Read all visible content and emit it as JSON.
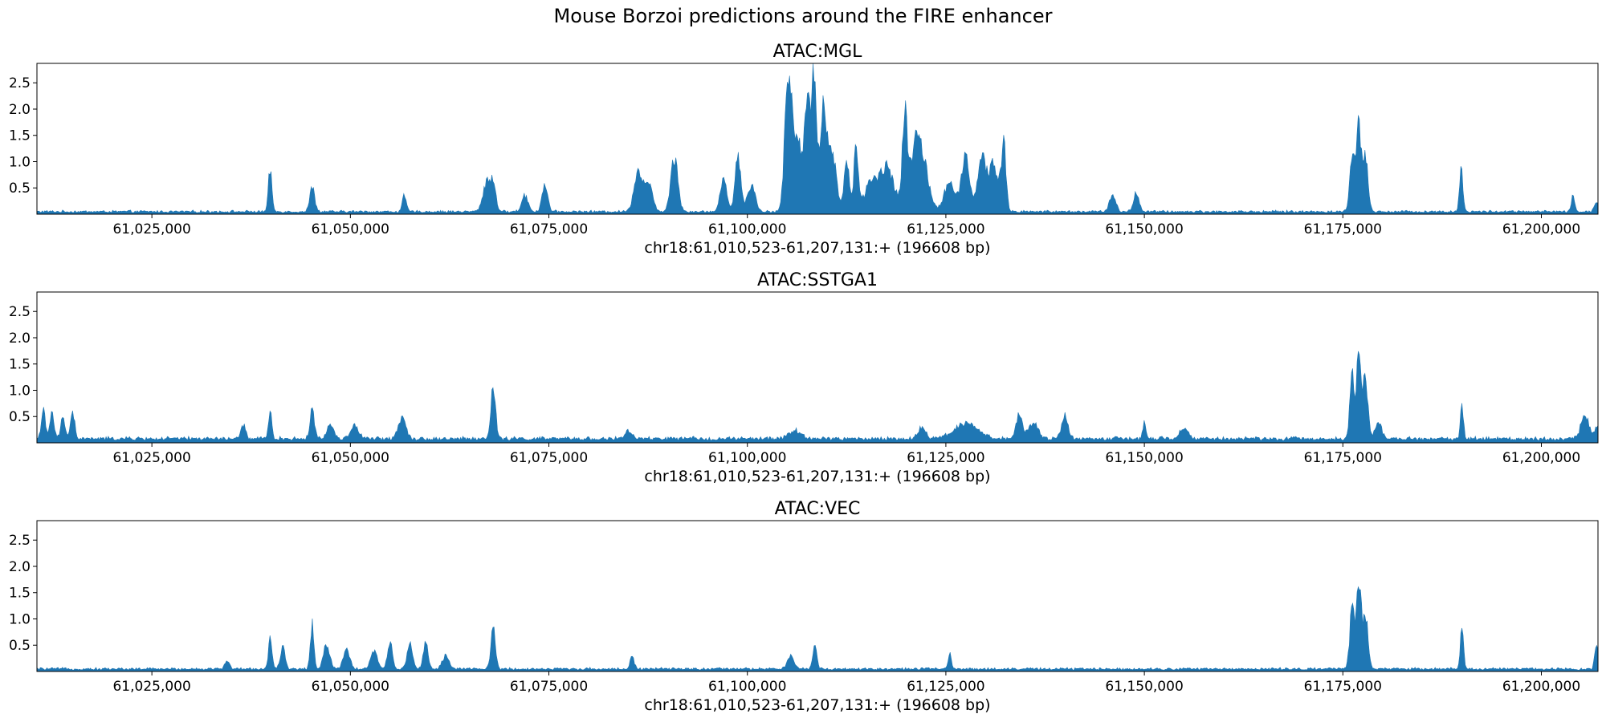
{
  "figure": {
    "title": "Mouse Borzoi predictions around the FIRE enhancer",
    "fill_color": "#1f77b4"
  },
  "chart_data": [
    {
      "type": "area",
      "title": "ATAC:MGL",
      "xlabel": "chr18:61,010,523-61,207,131:+ (196608 bp)",
      "ylabel": "",
      "xlim": [
        61010523,
        61207131
      ],
      "ylim": [
        0,
        2.87
      ],
      "xticks": [
        61025000,
        61050000,
        61075000,
        61100000,
        61125000,
        61150000,
        61175000,
        61200000
      ],
      "xtick_labels": [
        "61,025,000",
        "61,050,000",
        "61,075,000",
        "61,100,000",
        "61,125,000",
        "61,150,000",
        "61,175,000",
        "61,200,000"
      ],
      "yticks": [
        0.5,
        1.0,
        1.5,
        2.0,
        2.5
      ],
      "ytick_labels": [
        "0.5",
        "1.0",
        "1.5",
        "2.0",
        "2.5"
      ],
      "baseline": 0.05,
      "peaks": [
        {
          "pos": 61039900,
          "height": 0.8,
          "width": 220
        },
        {
          "pos": 61045200,
          "height": 0.45,
          "width": 300
        },
        {
          "pos": 61056800,
          "height": 0.3,
          "width": 250
        },
        {
          "pos": 61067200,
          "height": 0.55,
          "width": 500
        },
        {
          "pos": 61068000,
          "height": 0.45,
          "width": 350
        },
        {
          "pos": 61072000,
          "height": 0.3,
          "width": 400
        },
        {
          "pos": 61074500,
          "height": 0.55,
          "width": 350
        },
        {
          "pos": 61086200,
          "height": 0.75,
          "width": 500
        },
        {
          "pos": 61087500,
          "height": 0.6,
          "width": 500
        },
        {
          "pos": 61090800,
          "height": 1.05,
          "width": 450
        },
        {
          "pos": 61097000,
          "height": 0.6,
          "width": 400
        },
        {
          "pos": 61098800,
          "height": 1.15,
          "width": 350
        },
        {
          "pos": 61100500,
          "height": 0.5,
          "width": 500
        },
        {
          "pos": 61105100,
          "height": 2.2,
          "width": 400
        },
        {
          "pos": 61106200,
          "height": 1.4,
          "width": 700
        },
        {
          "pos": 61107600,
          "height": 2.2,
          "width": 350
        },
        {
          "pos": 61108400,
          "height": 2.65,
          "width": 250
        },
        {
          "pos": 61109500,
          "height": 1.9,
          "width": 450
        },
        {
          "pos": 61110700,
          "height": 1.1,
          "width": 500
        },
        {
          "pos": 61112500,
          "height": 0.9,
          "width": 350
        },
        {
          "pos": 61113700,
          "height": 1.2,
          "width": 280
        },
        {
          "pos": 61115500,
          "height": 0.5,
          "width": 800
        },
        {
          "pos": 61117500,
          "height": 0.85,
          "width": 900
        },
        {
          "pos": 61119800,
          "height": 1.5,
          "width": 280
        },
        {
          "pos": 61120900,
          "height": 0.9,
          "width": 900
        },
        {
          "pos": 61122000,
          "height": 0.8,
          "width": 800
        },
        {
          "pos": 61125500,
          "height": 0.55,
          "width": 700
        },
        {
          "pos": 61127500,
          "height": 1.1,
          "width": 500
        },
        {
          "pos": 61129500,
          "height": 1.05,
          "width": 500
        },
        {
          "pos": 61131000,
          "height": 0.9,
          "width": 600
        },
        {
          "pos": 61132300,
          "height": 1.2,
          "width": 300
        },
        {
          "pos": 61146000,
          "height": 0.3,
          "width": 400
        },
        {
          "pos": 61149000,
          "height": 0.35,
          "width": 350
        },
        {
          "pos": 61176200,
          "height": 1.2,
          "width": 300
        },
        {
          "pos": 61177000,
          "height": 1.7,
          "width": 250
        },
        {
          "pos": 61177800,
          "height": 1.1,
          "width": 350
        },
        {
          "pos": 61189900,
          "height": 0.8,
          "width": 220
        },
        {
          "pos": 61204000,
          "height": 0.35,
          "width": 180
        },
        {
          "pos": 61207000,
          "height": 0.2,
          "width": 300
        }
      ]
    },
    {
      "type": "area",
      "title": "ATAC:SSTGA1",
      "xlabel": "chr18:61,010,523-61,207,131:+ (196608 bp)",
      "ylabel": "",
      "xlim": [
        61010523,
        61207131
      ],
      "ylim": [
        0,
        2.87
      ],
      "xticks": [
        61025000,
        61050000,
        61075000,
        61100000,
        61125000,
        61150000,
        61175000,
        61200000
      ],
      "xtick_labels": [
        "61,025,000",
        "61,050,000",
        "61,075,000",
        "61,100,000",
        "61,125,000",
        "61,150,000",
        "61,175,000",
        "61,200,000"
      ],
      "yticks": [
        0.5,
        1.0,
        1.5,
        2.0,
        2.5
      ],
      "ytick_labels": [
        "0.5",
        "1.0",
        "1.5",
        "2.0",
        "2.5"
      ],
      "baseline": 0.08,
      "peaks": [
        {
          "pos": 61011300,
          "height": 0.55,
          "width": 250
        },
        {
          "pos": 61012400,
          "height": 0.5,
          "width": 250
        },
        {
          "pos": 61013800,
          "height": 0.35,
          "width": 300
        },
        {
          "pos": 61015000,
          "height": 0.55,
          "width": 250
        },
        {
          "pos": 61036500,
          "height": 0.25,
          "width": 300
        },
        {
          "pos": 61039900,
          "height": 0.55,
          "width": 200
        },
        {
          "pos": 61045200,
          "height": 0.65,
          "width": 250
        },
        {
          "pos": 61047500,
          "height": 0.3,
          "width": 400
        },
        {
          "pos": 61050500,
          "height": 0.25,
          "width": 500
        },
        {
          "pos": 61056500,
          "height": 0.4,
          "width": 500
        },
        {
          "pos": 61068000,
          "height": 1.05,
          "width": 280
        },
        {
          "pos": 61085000,
          "height": 0.15,
          "width": 400
        },
        {
          "pos": 61106000,
          "height": 0.15,
          "width": 800
        },
        {
          "pos": 61122000,
          "height": 0.2,
          "width": 500
        },
        {
          "pos": 61127500,
          "height": 0.3,
          "width": 1500
        },
        {
          "pos": 61134200,
          "height": 0.5,
          "width": 350
        },
        {
          "pos": 61136000,
          "height": 0.3,
          "width": 600
        },
        {
          "pos": 61140000,
          "height": 0.45,
          "width": 400
        },
        {
          "pos": 61150000,
          "height": 0.3,
          "width": 200
        },
        {
          "pos": 61155000,
          "height": 0.2,
          "width": 500
        },
        {
          "pos": 61176200,
          "height": 1.2,
          "width": 300
        },
        {
          "pos": 61177000,
          "height": 1.65,
          "width": 250
        },
        {
          "pos": 61177800,
          "height": 1.1,
          "width": 350
        },
        {
          "pos": 61179500,
          "height": 0.3,
          "width": 400
        },
        {
          "pos": 61190000,
          "height": 0.6,
          "width": 200
        },
        {
          "pos": 61205500,
          "height": 0.45,
          "width": 500
        },
        {
          "pos": 61207000,
          "height": 0.25,
          "width": 300
        }
      ]
    },
    {
      "type": "area",
      "title": "ATAC:VEC",
      "xlabel": "chr18:61,010,523-61,207,131:+ (196608 bp)",
      "ylabel": "",
      "xlim": [
        61010523,
        61207131
      ],
      "ylim": [
        0,
        2.87
      ],
      "xticks": [
        61025000,
        61050000,
        61075000,
        61100000,
        61125000,
        61150000,
        61175000,
        61200000
      ],
      "xtick_labels": [
        "61,025,000",
        "61,050,000",
        "61,075,000",
        "61,100,000",
        "61,125,000",
        "61,150,000",
        "61,175,000",
        "61,200,000"
      ],
      "yticks": [
        0.5,
        1.0,
        1.5,
        2.0,
        2.5
      ],
      "ytick_labels": [
        "0.5",
        "1.0",
        "1.5",
        "2.0",
        "2.5"
      ],
      "baseline": 0.05,
      "peaks": [
        {
          "pos": 61034500,
          "height": 0.15,
          "width": 300
        },
        {
          "pos": 61039900,
          "height": 0.6,
          "width": 220
        },
        {
          "pos": 61041500,
          "height": 0.4,
          "width": 300
        },
        {
          "pos": 61045200,
          "height": 0.85,
          "width": 220
        },
        {
          "pos": 61047000,
          "height": 0.45,
          "width": 400
        },
        {
          "pos": 61049500,
          "height": 0.4,
          "width": 400
        },
        {
          "pos": 61053000,
          "height": 0.35,
          "width": 400
        },
        {
          "pos": 61055000,
          "height": 0.5,
          "width": 300
        },
        {
          "pos": 61057500,
          "height": 0.45,
          "width": 350
        },
        {
          "pos": 61059500,
          "height": 0.5,
          "width": 300
        },
        {
          "pos": 61062000,
          "height": 0.25,
          "width": 400
        },
        {
          "pos": 61068000,
          "height": 0.8,
          "width": 280
        },
        {
          "pos": 61085500,
          "height": 0.25,
          "width": 250
        },
        {
          "pos": 61105500,
          "height": 0.25,
          "width": 400
        },
        {
          "pos": 61108500,
          "height": 0.5,
          "width": 250
        },
        {
          "pos": 61125500,
          "height": 0.35,
          "width": 180
        },
        {
          "pos": 61176200,
          "height": 1.2,
          "width": 300
        },
        {
          "pos": 61177000,
          "height": 1.65,
          "width": 250
        },
        {
          "pos": 61177800,
          "height": 1.1,
          "width": 350
        },
        {
          "pos": 61190000,
          "height": 0.75,
          "width": 200
        },
        {
          "pos": 61207000,
          "height": 0.45,
          "width": 250
        }
      ]
    }
  ]
}
